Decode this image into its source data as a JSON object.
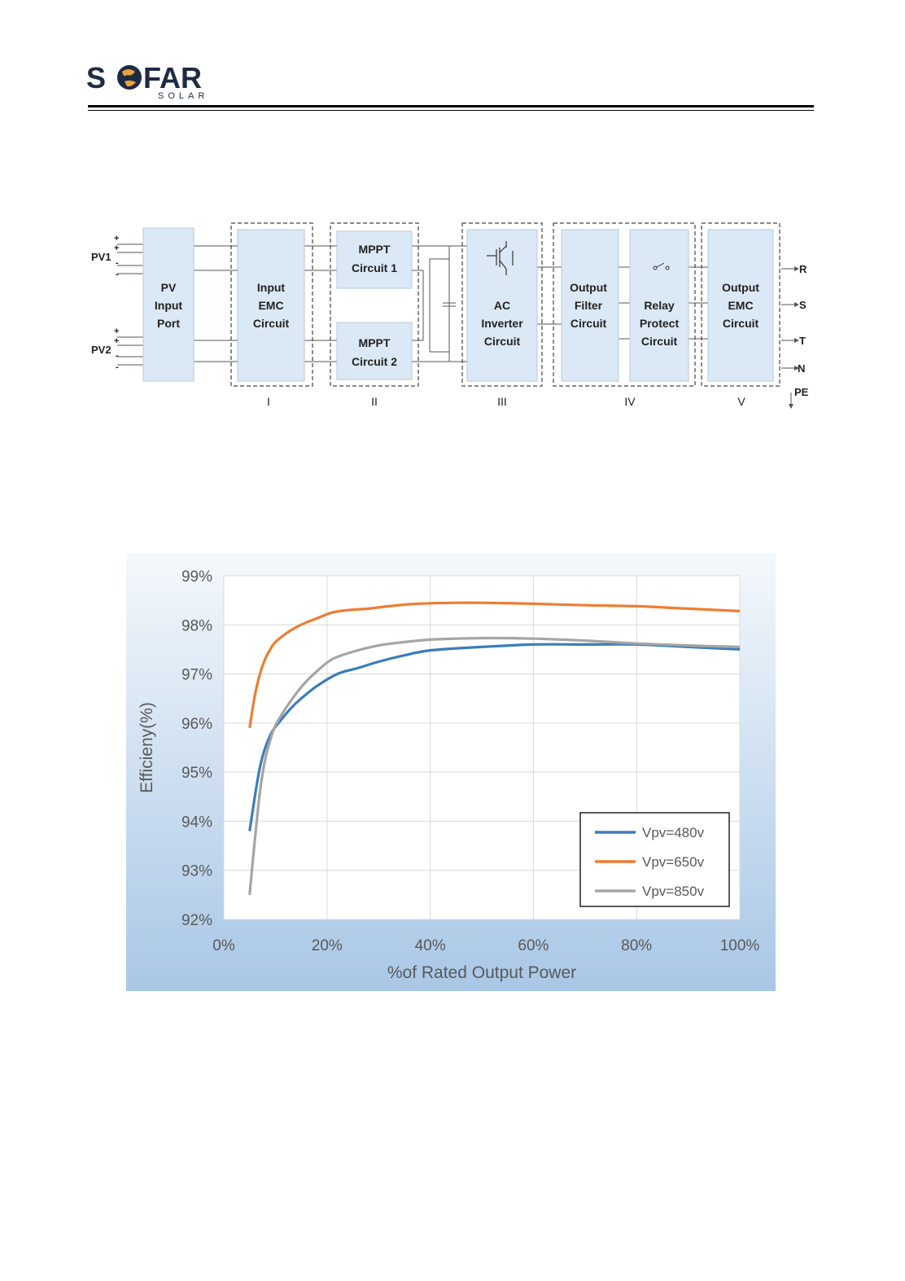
{
  "logo": {
    "word_left": "S",
    "word_right": "FAR",
    "sub": "SOLAR",
    "brand_color": "#1f2a44",
    "globe_color": "#e8a33a"
  },
  "diagram": {
    "inputs": [
      {
        "label": "PV1",
        "signs": [
          "+",
          "+",
          "-",
          "-"
        ]
      },
      {
        "label": "PV2",
        "signs": [
          "+",
          "+",
          "-",
          "-"
        ]
      }
    ],
    "blocks": {
      "pv_input_port": [
        "PV",
        "Input",
        "Port"
      ],
      "input_emc": [
        "Input",
        "EMC",
        "Circuit"
      ],
      "mppt1": [
        "MPPT",
        "Circuit 1"
      ],
      "mppt2": [
        "MPPT",
        "Circuit 2"
      ],
      "ac_inverter": [
        "AC",
        "Inverter",
        "Circuit"
      ],
      "output_filter": [
        "Output",
        "Filter",
        "Circuit"
      ],
      "relay_protect": [
        "Relay",
        "Protect",
        "Circuit"
      ],
      "output_emc": [
        "Output",
        "EMC",
        "Circuit"
      ]
    },
    "stages": [
      "I",
      "II",
      "III",
      "IV",
      "V"
    ],
    "outputs": [
      "R",
      "S",
      "T",
      "N",
      "PE"
    ],
    "block_fill": "#dbe8f5"
  },
  "chart_data": {
    "type": "line",
    "xlabel": "%of Rated Output Power",
    "ylabel": "Efficieny(%)",
    "xlim": [
      0,
      100
    ],
    "ylim": [
      92,
      99
    ],
    "xticks": [
      "0%",
      "20%",
      "40%",
      "60%",
      "80%",
      "100%"
    ],
    "yticks": [
      "92%",
      "93%",
      "94%",
      "95%",
      "96%",
      "97%",
      "98%",
      "99%"
    ],
    "grid": true,
    "legend_position": "bottom-right",
    "series": [
      {
        "name": "Vpv=480v",
        "color": "#3b7dbd",
        "x": [
          5,
          7,
          9,
          11,
          13,
          15,
          18,
          22,
          26,
          30,
          35,
          40,
          50,
          60,
          70,
          80,
          90,
          100
        ],
        "y": [
          93.8,
          95.1,
          95.75,
          96.05,
          96.3,
          96.5,
          96.75,
          97.0,
          97.12,
          97.25,
          97.38,
          97.48,
          97.55,
          97.6,
          97.6,
          97.6,
          97.55,
          97.5
        ]
      },
      {
        "name": "Vpv=650v",
        "color": "#ee7d31",
        "x": [
          5,
          6,
          7,
          8,
          9,
          10,
          12,
          14,
          16,
          18,
          21,
          24,
          28,
          32,
          36,
          40,
          45,
          50,
          60,
          70,
          80,
          90,
          100
        ],
        "y": [
          95.9,
          96.55,
          97.0,
          97.3,
          97.5,
          97.65,
          97.82,
          97.95,
          98.05,
          98.13,
          98.25,
          98.3,
          98.33,
          98.38,
          98.42,
          98.44,
          98.45,
          98.45,
          98.43,
          98.4,
          98.38,
          98.33,
          98.28
        ]
      },
      {
        "name": "Vpv=850v",
        "color": "#a5a5a5",
        "x": [
          5,
          6,
          7,
          8,
          9,
          10,
          12,
          14,
          16,
          18,
          21,
          25,
          30,
          35,
          40,
          45,
          50,
          55,
          60,
          70,
          80,
          90,
          100
        ],
        "y": [
          92.5,
          93.6,
          94.6,
          95.25,
          95.65,
          95.95,
          96.3,
          96.6,
          96.85,
          97.05,
          97.3,
          97.45,
          97.58,
          97.65,
          97.7,
          97.72,
          97.73,
          97.73,
          97.72,
          97.68,
          97.62,
          97.58,
          97.55
        ]
      }
    ]
  }
}
